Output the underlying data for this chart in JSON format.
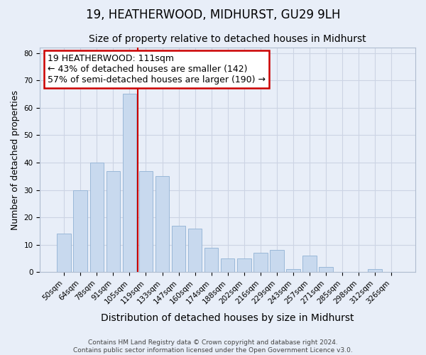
{
  "title": "19, HEATHERWOOD, MIDHURST, GU29 9LH",
  "subtitle": "Size of property relative to detached houses in Midhurst",
  "xlabel": "Distribution of detached houses by size in Midhurst",
  "ylabel": "Number of detached properties",
  "categories": [
    "50sqm",
    "64sqm",
    "78sqm",
    "91sqm",
    "105sqm",
    "119sqm",
    "133sqm",
    "147sqm",
    "160sqm",
    "174sqm",
    "188sqm",
    "202sqm",
    "216sqm",
    "229sqm",
    "243sqm",
    "257sqm",
    "271sqm",
    "285sqm",
    "298sqm",
    "312sqm",
    "326sqm"
  ],
  "values": [
    14,
    30,
    40,
    37,
    65,
    37,
    35,
    17,
    16,
    9,
    5,
    5,
    7,
    8,
    1,
    6,
    2,
    0,
    0,
    1,
    0
  ],
  "bar_color": "#c8d9ee",
  "bar_edge_color": "#9ab8d8",
  "vline_x_index": 4.5,
  "vline_color": "#cc0000",
  "annotation_line1": "19 HEATHERWOOD: 111sqm",
  "annotation_line2": "← 43% of detached houses are smaller (142)",
  "annotation_line3": "57% of semi-detached houses are larger (190) →",
  "annotation_box_color": "#ffffff",
  "annotation_box_edge_color": "#cc0000",
  "ylim": [
    0,
    82
  ],
  "yticks": [
    0,
    10,
    20,
    30,
    40,
    50,
    60,
    70,
    80
  ],
  "grid_color": "#ccd4e4",
  "background_color": "#e8eef8",
  "plot_bg_color": "#e8eef8",
  "footer_line1": "Contains HM Land Registry data © Crown copyright and database right 2024.",
  "footer_line2": "Contains public sector information licensed under the Open Government Licence v3.0.",
  "title_fontsize": 12,
  "subtitle_fontsize": 10,
  "xlabel_fontsize": 10,
  "ylabel_fontsize": 9,
  "tick_fontsize": 7.5,
  "annotation_fontsize": 9,
  "footer_fontsize": 6.5
}
